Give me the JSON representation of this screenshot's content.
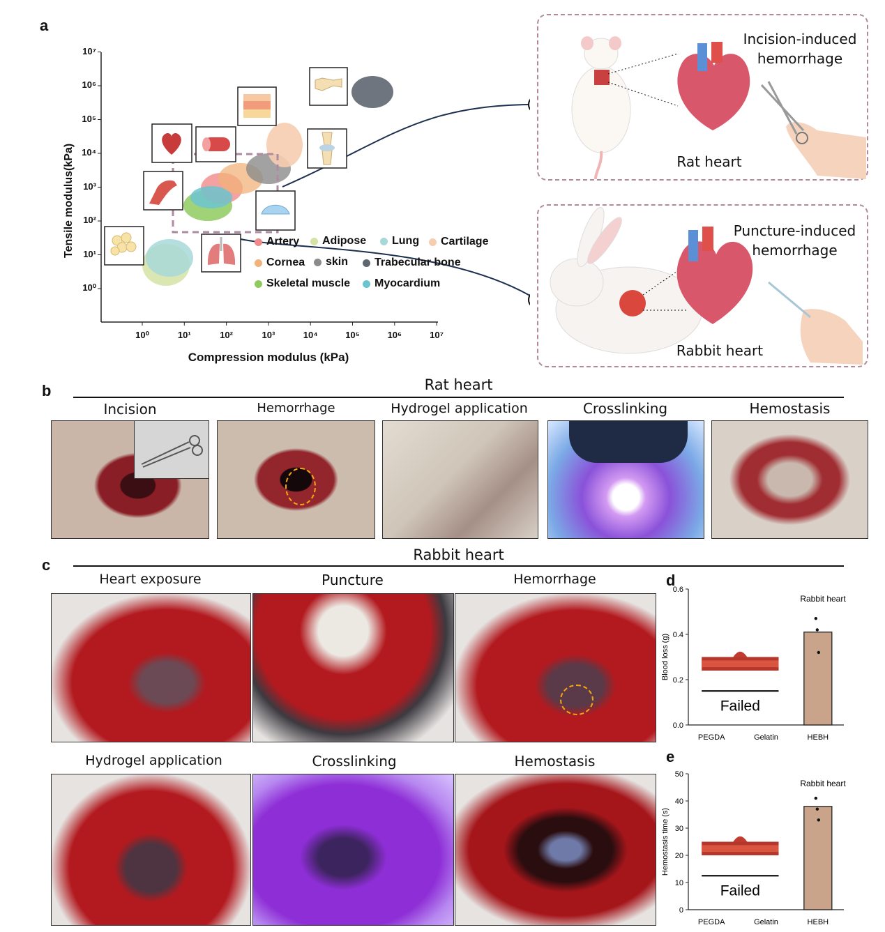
{
  "panels": {
    "a": "a",
    "b": "b",
    "c": "c",
    "d": "d",
    "e": "e"
  },
  "panel_a": {
    "ylabel": "Tensile modulus(kPa)",
    "xlabel": "Compression modulus (kPa)",
    "y_ticks": [
      "10⁰",
      "10¹",
      "10²",
      "10³",
      "10⁴",
      "10⁵",
      "10⁶",
      "10⁷"
    ],
    "x_ticks": [
      "10⁰",
      "10¹",
      "10²",
      "10³",
      "10⁴",
      "10⁵",
      "10⁶",
      "10⁷"
    ],
    "legend": [
      {
        "label": "Artery",
        "color": "#f08a8a"
      },
      {
        "label": "Adipose",
        "color": "#d5e3a6"
      },
      {
        "label": "Lung",
        "color": "#a8d8d8"
      },
      {
        "label": "Cartilage",
        "color": "#f7cdb0"
      },
      {
        "label": "Cornea",
        "color": "#f2b27a"
      },
      {
        "label": "skin",
        "color": "#8b8b8b"
      },
      {
        "label": "Trabecular bone",
        "color": "#5f6670"
      },
      {
        "label": "Skeletal muscle",
        "color": "#8fcb5f"
      },
      {
        "label": "Myocardium",
        "color": "#6cc4cf"
      }
    ],
    "rat_box": {
      "title_line1": "Incision-induced",
      "title_line2": "hemorrhage",
      "caption": "Rat heart"
    },
    "rabbit_box": {
      "title_line1": "Puncture-induced",
      "title_line2": "hemorrhage",
      "caption": "Rabbit heart"
    }
  },
  "panel_b": {
    "title": "Rat heart",
    "steps": [
      "Incision",
      "Hemorrhage",
      "Hydrogel application",
      "Crosslinking",
      "Hemostasis"
    ]
  },
  "panel_c": {
    "title": "Rabbit heart",
    "row1": [
      "Heart exposure",
      "Puncture",
      "Hemorrhage"
    ],
    "row2": [
      "Hydrogel application",
      "Crosslinking",
      "Hemostasis"
    ]
  },
  "chart_data": [
    {
      "type": "bar",
      "panel": "d",
      "title": "Rabbit heart",
      "ylabel": "Blood loss (g)",
      "categories": [
        "PEGDA",
        "Gelatin",
        "HEBH"
      ],
      "values": [
        null,
        null,
        0.41
      ],
      "points": [
        [],
        [],
        [
          0.47,
          0.42,
          0.32
        ]
      ],
      "annotation": "Failed",
      "ylim": [
        0,
        0.6
      ],
      "y_ticks": [
        "0.0",
        "0.2",
        "0.4",
        "0.6"
      ],
      "bar_color": "#c9a48a"
    },
    {
      "type": "bar",
      "panel": "e",
      "title": "Rabbit heart",
      "ylabel": "Hemostasis time (s)",
      "categories": [
        "PEGDA",
        "Gelatin",
        "HEBH"
      ],
      "values": [
        null,
        null,
        38
      ],
      "points": [
        [],
        [],
        [
          41,
          37,
          33
        ]
      ],
      "annotation": "Failed",
      "ylim": [
        0,
        50
      ],
      "y_ticks": [
        "0",
        "10",
        "20",
        "30",
        "40",
        "50"
      ],
      "bar_color": "#c9a48a"
    }
  ]
}
